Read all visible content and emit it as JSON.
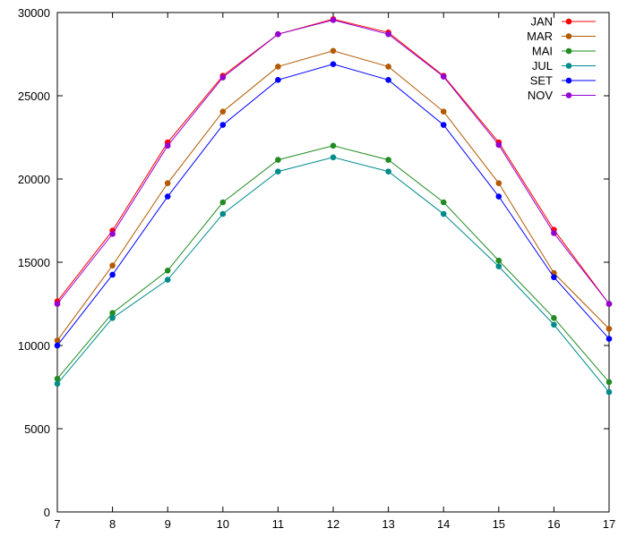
{
  "chart_data": {
    "type": "line",
    "title": "",
    "xlabel": "",
    "ylabel": "",
    "x": [
      7,
      8,
      9,
      10,
      11,
      12,
      13,
      14,
      15,
      16,
      17
    ],
    "xlim": [
      7,
      17
    ],
    "ylim": [
      0,
      30000
    ],
    "xticks": [
      7,
      8,
      9,
      10,
      11,
      12,
      13,
      14,
      15,
      16,
      17
    ],
    "yticks": [
      0,
      5000,
      10000,
      15000,
      20000,
      25000,
      30000
    ],
    "grid": false,
    "legend_position": "top-right",
    "series": [
      {
        "name": "JAN",
        "color": "#ff0000",
        "values": [
          12650,
          16900,
          22200,
          26200,
          28700,
          29600,
          28800,
          26200,
          22200,
          16950,
          12500
        ]
      },
      {
        "name": "MAR",
        "color": "#b35900",
        "values": [
          10300,
          14800,
          19750,
          24050,
          26750,
          27700,
          26750,
          24050,
          19750,
          14350,
          11000
        ]
      },
      {
        "name": "MAI",
        "color": "#228b22",
        "values": [
          8000,
          11950,
          14500,
          18600,
          21150,
          22000,
          21150,
          18600,
          15100,
          11650,
          7800
        ]
      },
      {
        "name": "JUL",
        "color": "#008b8b",
        "values": [
          7700,
          11650,
          13950,
          17900,
          20450,
          21300,
          20450,
          17900,
          14750,
          11250,
          7200
        ]
      },
      {
        "name": "SET",
        "color": "#0000ff",
        "values": [
          10000,
          14250,
          18950,
          23250,
          25950,
          26900,
          25950,
          23250,
          18950,
          14100,
          10400
        ]
      },
      {
        "name": "NOV",
        "color": "#9400d3",
        "values": [
          12500,
          16700,
          22000,
          26100,
          28700,
          29550,
          28700,
          26150,
          22050,
          16750,
          12500
        ]
      }
    ]
  }
}
